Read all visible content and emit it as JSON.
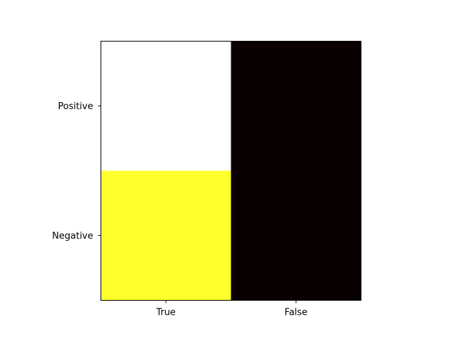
{
  "chart_data": {
    "type": "heatmap",
    "x_categories": [
      "True",
      "False"
    ],
    "y_categories": [
      "Positive",
      "Negative"
    ],
    "cells": [
      {
        "row": "Positive",
        "col": "True",
        "color": "#ffffff"
      },
      {
        "row": "Positive",
        "col": "False",
        "color": "#0b0000"
      },
      {
        "row": "Negative",
        "col": "True",
        "color": "#ffff2b"
      },
      {
        "row": "Negative",
        "col": "False",
        "color": "#0b0000"
      }
    ],
    "colormap": "hot",
    "grid": false,
    "legend": "none"
  }
}
